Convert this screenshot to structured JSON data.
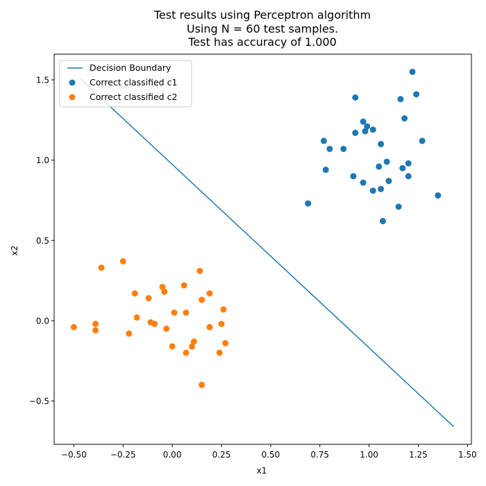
{
  "chart_data": {
    "type": "scatter",
    "title_lines": [
      "Test results using Perceptron algorithm",
      "Using N = 60 test samples.",
      "Test has accuracy of 1.000"
    ],
    "xlabel": "x1",
    "ylabel": "x2",
    "xlim": [
      -0.6,
      1.52
    ],
    "ylim": [
      -0.77,
      1.66
    ],
    "xticks": [
      -0.5,
      -0.25,
      0.0,
      0.25,
      0.5,
      0.75,
      1.0,
      1.25,
      1.5
    ],
    "yticks": [
      -0.5,
      0.0,
      0.5,
      1.0,
      1.5
    ],
    "xtick_labels": [
      "−0.50",
      "−0.25",
      "0.00",
      "0.25",
      "0.50",
      "0.75",
      "1.00",
      "1.25",
      "1.50"
    ],
    "ytick_labels": [
      "−0.5",
      "0.0",
      "0.5",
      "1.0",
      "1.5"
    ],
    "grid": false,
    "legend_position": "top-left",
    "series": [
      {
        "name": "Decision Boundary",
        "kind": "line",
        "color": "#1f77b4",
        "points": [
          [
            -0.47,
            1.51
          ],
          [
            1.43,
            -0.66
          ]
        ]
      },
      {
        "name": "Correct classified c1",
        "kind": "scatter",
        "color": "#1f77b4",
        "points": [
          [
            1.22,
            1.55
          ],
          [
            0.93,
            1.39
          ],
          [
            1.24,
            1.41
          ],
          [
            1.16,
            1.38
          ],
          [
            0.97,
            1.24
          ],
          [
            1.18,
            1.26
          ],
          [
            0.99,
            1.21
          ],
          [
            1.02,
            1.19
          ],
          [
            0.98,
            1.18
          ],
          [
            0.93,
            1.17
          ],
          [
            0.77,
            1.12
          ],
          [
            1.27,
            1.12
          ],
          [
            0.8,
            1.07
          ],
          [
            0.87,
            1.07
          ],
          [
            1.06,
            1.1
          ],
          [
            1.09,
            0.99
          ],
          [
            1.2,
            0.98
          ],
          [
            1.05,
            0.96
          ],
          [
            1.17,
            0.95
          ],
          [
            0.78,
            0.94
          ],
          [
            0.92,
            0.9
          ],
          [
            1.2,
            0.9
          ],
          [
            1.1,
            0.87
          ],
          [
            0.97,
            0.86
          ],
          [
            1.06,
            0.82
          ],
          [
            1.02,
            0.81
          ],
          [
            1.35,
            0.78
          ],
          [
            0.69,
            0.73
          ],
          [
            1.15,
            0.71
          ],
          [
            1.07,
            0.62
          ]
        ]
      },
      {
        "name": "Correct classified c2",
        "kind": "scatter",
        "color": "#ff7f0e",
        "points": [
          [
            -0.25,
            0.37
          ],
          [
            -0.36,
            0.33
          ],
          [
            0.14,
            0.31
          ],
          [
            0.06,
            0.22
          ],
          [
            -0.05,
            0.21
          ],
          [
            -0.19,
            0.17
          ],
          [
            -0.04,
            0.18
          ],
          [
            0.19,
            0.17
          ],
          [
            -0.12,
            0.14
          ],
          [
            0.15,
            0.13
          ],
          [
            0.01,
            0.05
          ],
          [
            0.07,
            0.05
          ],
          [
            0.26,
            0.07
          ],
          [
            -0.18,
            0.02
          ],
          [
            -0.11,
            -0.01
          ],
          [
            -0.09,
            -0.02
          ],
          [
            0.25,
            -0.02
          ],
          [
            -0.39,
            -0.02
          ],
          [
            -0.5,
            -0.04
          ],
          [
            0.19,
            -0.04
          ],
          [
            -0.03,
            -0.05
          ],
          [
            -0.39,
            -0.06
          ],
          [
            -0.22,
            -0.08
          ],
          [
            0.11,
            -0.13
          ],
          [
            0.27,
            -0.14
          ],
          [
            0.0,
            -0.16
          ],
          [
            0.1,
            -0.16
          ],
          [
            0.07,
            -0.2
          ],
          [
            0.24,
            -0.2
          ],
          [
            0.15,
            -0.4
          ]
        ]
      }
    ]
  }
}
